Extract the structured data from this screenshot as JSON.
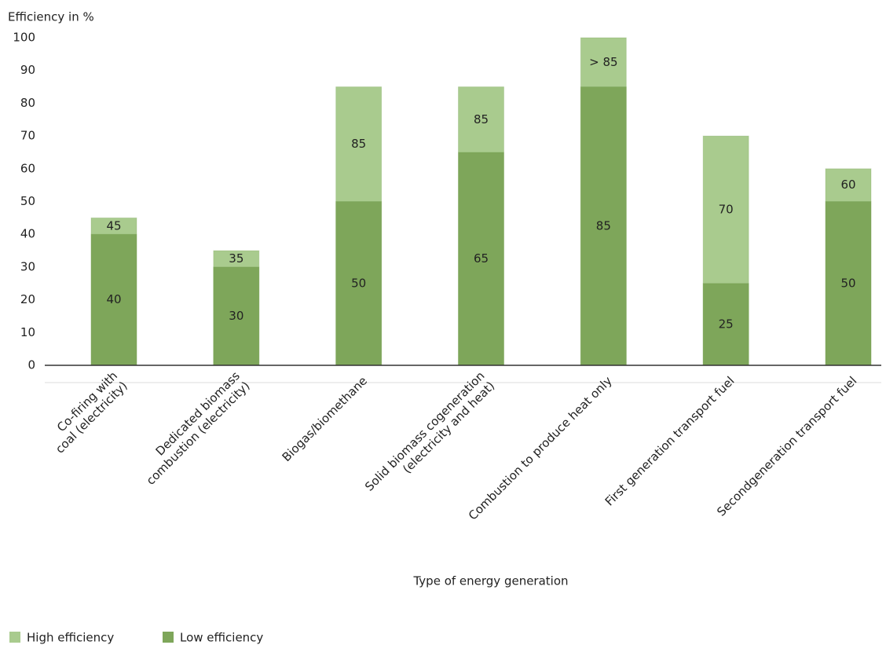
{
  "chart_data": {
    "type": "overlap_bar",
    "y_label": "Efficiency in %",
    "x_label": "Type of energy generation",
    "categories": [
      "Co-firing with\ncoal (electricity)",
      "Dedicated biomass\ncombustion (electricity)",
      "Biogas/biomethane",
      "Solid biomass cogeneration\n(electricity and heat)",
      "Combustion to produce heat only",
      "First generation transport fuel",
      "Secondgeneration transport fuel"
    ],
    "series": [
      {
        "name": "High efficiency",
        "color": "#a9cb8e",
        "values": [
          45,
          35,
          85,
          85,
          100,
          70,
          60
        ],
        "value_labels": [
          "45",
          "35",
          "85",
          "85",
          "> 85",
          "70",
          "60"
        ]
      },
      {
        "name": "Low efficiency",
        "color": "#7ea65a",
        "values": [
          40,
          30,
          50,
          65,
          85,
          25,
          50
        ]
      }
    ],
    "ylim": [
      0,
      100
    ],
    "yticks": [
      0,
      10,
      20,
      30,
      40,
      50,
      60,
      70,
      80,
      90,
      100
    ]
  }
}
